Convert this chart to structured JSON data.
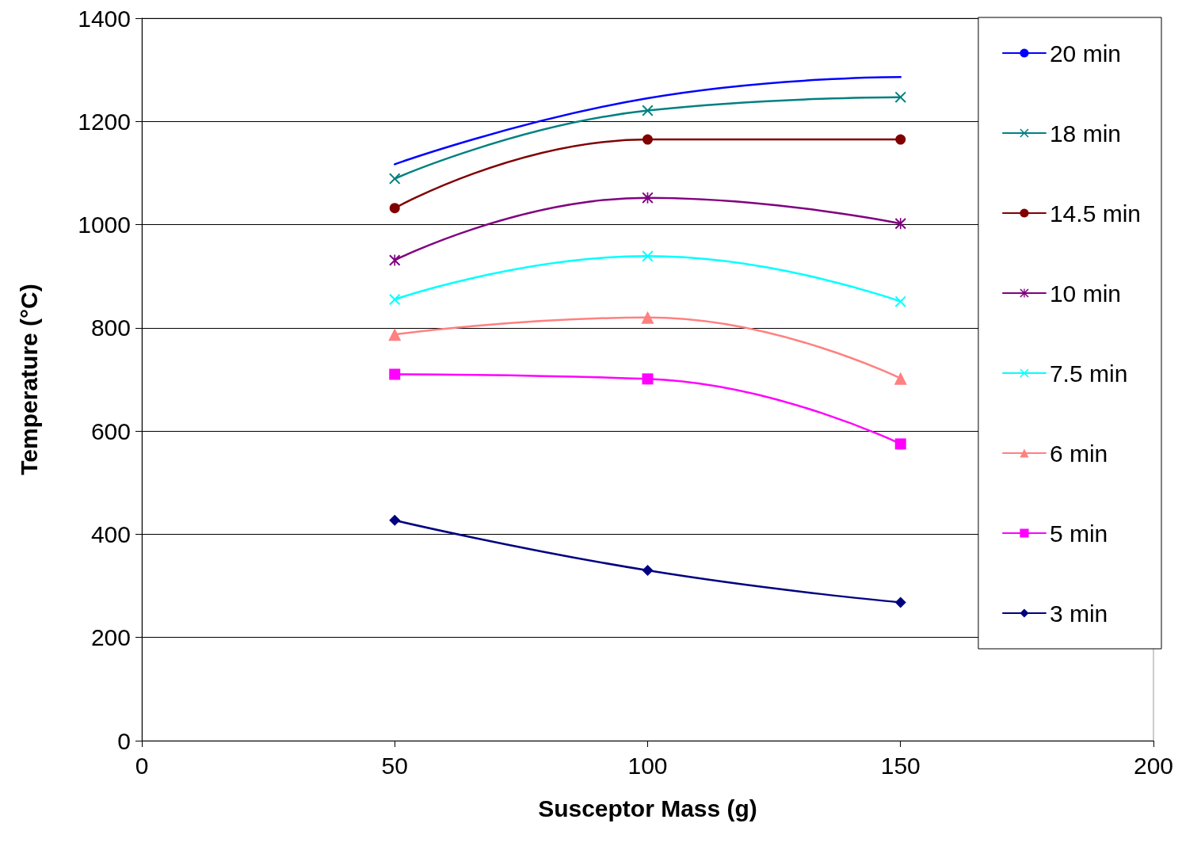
{
  "chart_data": {
    "type": "line",
    "xlabel": "Susceptor Mass (g)",
    "ylabel": "Temperature (°C)",
    "x": [
      50,
      100,
      150
    ],
    "series": [
      {
        "name": "20 min",
        "color": "#0000ff",
        "marker": "none",
        "values": [
          1117,
          1245,
          1286
        ]
      },
      {
        "name": "18 min",
        "color": "#008080",
        "marker": "cross",
        "values": [
          1089,
          1221,
          1247
        ]
      },
      {
        "name": "14.5 min",
        "color": "#800000",
        "marker": "circle",
        "values": [
          1032,
          1165,
          1165
        ]
      },
      {
        "name": "10 min",
        "color": "#800080",
        "marker": "star",
        "values": [
          931,
          1052,
          1002
        ]
      },
      {
        "name": "7.5 min",
        "color": "#00ffff",
        "marker": "cross",
        "values": [
          855,
          939,
          851
        ]
      },
      {
        "name": "6 min",
        "color": "#ff8080",
        "marker": "triangle",
        "values": [
          787,
          820,
          702
        ]
      },
      {
        "name": "5 min",
        "color": "#ff00ff",
        "marker": "square",
        "values": [
          710,
          701,
          575
        ]
      },
      {
        "name": "3 min",
        "color": "#000080",
        "marker": "diamond",
        "values": [
          427,
          330,
          268
        ]
      }
    ],
    "xlim": [
      0,
      200
    ],
    "xticks": [
      0,
      50,
      100,
      150,
      200
    ],
    "ylim": [
      0,
      1400
    ],
    "yticks": [
      0,
      200,
      400,
      600,
      800,
      1000,
      1200,
      1400
    ],
    "grid": "y",
    "legend": "right",
    "line_style": "solid"
  }
}
